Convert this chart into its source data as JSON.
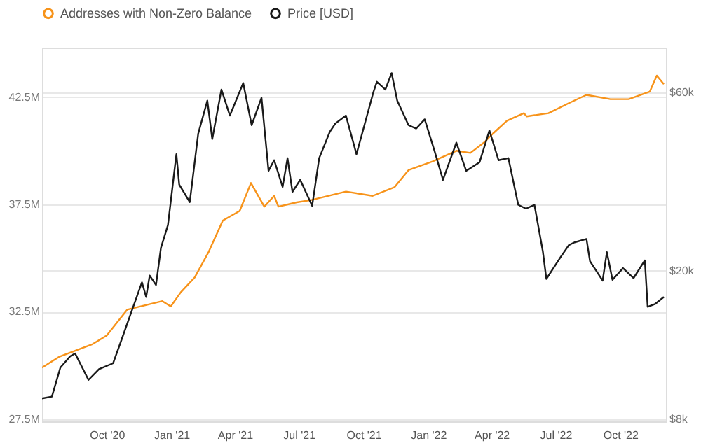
{
  "chart_data": {
    "type": "line",
    "legend": "top left",
    "grid": "y",
    "log": "y2",
    "line_style": "solid",
    "xlim": [
      "2020-07-01",
      "2022-12-05"
    ],
    "xticks": [
      {
        "value": "2020-10-01",
        "label": "Oct '20"
      },
      {
        "value": "2021-01-01",
        "label": "Jan '21"
      },
      {
        "value": "2021-04-01",
        "label": "Apr '21"
      },
      {
        "value": "2021-07-01",
        "label": "Jul '21"
      },
      {
        "value": "2021-10-01",
        "label": "Oct '21"
      },
      {
        "value": "2022-01-01",
        "label": "Jan '22"
      },
      {
        "value": "2022-04-01",
        "label": "Apr '22"
      },
      {
        "value": "2022-07-01",
        "label": "Jul '22"
      },
      {
        "value": "2022-10-01",
        "label": "Oct '22"
      }
    ],
    "ylim": [
      27.4,
      44.8
    ],
    "yticks": [
      {
        "value": 27.5,
        "label": "27.5M"
      },
      {
        "value": 32.5,
        "label": "32.5M"
      },
      {
        "value": 37.5,
        "label": "37.5M"
      },
      {
        "value": 42.5,
        "label": "42.5M"
      }
    ],
    "y2lim": [
      7900,
      79000
    ],
    "y2ticks": [
      {
        "value": 8000,
        "label": "$8k"
      },
      {
        "value": 20000,
        "label": "$20k"
      },
      {
        "value": 60000,
        "label": "$60k"
      }
    ],
    "series": [
      {
        "name": "Addresses with Non-Zero Balance",
        "color": "#f7931a",
        "x": [
          "2020-07-01",
          "2020-07-25",
          "2020-09-11",
          "2020-10-01",
          "2020-10-30",
          "2020-12-19",
          "2020-12-31",
          "2021-01-14",
          "2021-02-03",
          "2021-02-23",
          "2021-03-15",
          "2021-04-08",
          "2021-04-24",
          "2021-05-13",
          "2021-05-27",
          "2021-06-02",
          "2021-06-28",
          "2021-07-18",
          "2021-09-06",
          "2021-10-14",
          "2021-11-14",
          "2021-12-04",
          "2022-01-07",
          "2022-02-10",
          "2022-03-02",
          "2022-03-22",
          "2022-04-03",
          "2022-04-23",
          "2022-05-17",
          "2022-05-21",
          "2022-06-21",
          "2022-07-19",
          "2022-08-14",
          "2022-09-17",
          "2022-10-13",
          "2022-11-12",
          "2022-11-22",
          "2022-12-02"
        ],
        "values": [
          29.9,
          30.4,
          31.0,
          31.4,
          32.6,
          33.0,
          32.75,
          33.4,
          34.1,
          35.3,
          36.75,
          37.2,
          38.5,
          37.4,
          37.9,
          37.4,
          37.6,
          37.7,
          38.1,
          37.9,
          38.3,
          39.1,
          39.5,
          40.0,
          39.9,
          40.4,
          40.8,
          41.4,
          41.75,
          41.6,
          41.75,
          42.2,
          42.6,
          42.4,
          42.4,
          42.75,
          43.5,
          43.1
        ]
      },
      {
        "name": "Price [USD]",
        "color": "#1a1a1a",
        "axis": "y2",
        "x": [
          "2020-07-01",
          "2020-07-15",
          "2020-07-27",
          "2020-08-10",
          "2020-08-17",
          "2020-09-05",
          "2020-09-20",
          "2020-10-10",
          "2020-10-21",
          "2020-11-05",
          "2020-11-20",
          "2020-11-26",
          "2020-12-01",
          "2020-12-10",
          "2020-12-17",
          "2020-12-27",
          "2021-01-08",
          "2021-01-12",
          "2021-01-27",
          "2021-02-08",
          "2021-02-21",
          "2021-02-28",
          "2021-03-13",
          "2021-03-25",
          "2021-04-13",
          "2021-04-25",
          "2021-05-09",
          "2021-05-19",
          "2021-05-27",
          "2021-06-08",
          "2021-06-15",
          "2021-06-22",
          "2021-07-03",
          "2021-07-20",
          "2021-07-30",
          "2021-08-14",
          "2021-08-22",
          "2021-09-06",
          "2021-09-21",
          "2021-10-01",
          "2021-10-15",
          "2021-10-20",
          "2021-11-01",
          "2021-11-10",
          "2021-11-18",
          "2021-12-04",
          "2021-12-15",
          "2021-12-27",
          "2022-01-10",
          "2022-01-22",
          "2022-02-10",
          "2022-02-24",
          "2022-03-15",
          "2022-03-29",
          "2022-04-11",
          "2022-04-25",
          "2022-05-09",
          "2022-05-20",
          "2022-06-01",
          "2022-06-13",
          "2022-06-18",
          "2022-07-08",
          "2022-07-20",
          "2022-07-28",
          "2022-08-14",
          "2022-08-19",
          "2022-09-06",
          "2022-09-12",
          "2022-09-20",
          "2022-10-05",
          "2022-10-20",
          "2022-11-05",
          "2022-11-09",
          "2022-11-20",
          "2022-12-02"
        ],
        "values": [
          9100,
          9200,
          11000,
          11800,
          12000,
          10200,
          10900,
          11300,
          12900,
          15500,
          18600,
          17000,
          19400,
          18300,
          23000,
          26500,
          41000,
          34000,
          30500,
          46500,
          57000,
          45000,
          61000,
          52000,
          63500,
          49000,
          58000,
          37000,
          39500,
          33500,
          40000,
          32500,
          35000,
          29800,
          40000,
          47000,
          49500,
          52000,
          41000,
          48000,
          60000,
          64000,
          61000,
          67500,
          57000,
          49000,
          48000,
          50800,
          41800,
          35000,
          44000,
          37000,
          39000,
          47400,
          39500,
          40000,
          30000,
          29300,
          30000,
          22500,
          19000,
          21700,
          23400,
          23800,
          24300,
          21200,
          18800,
          22400,
          18900,
          20300,
          19100,
          21300,
          16000,
          16300,
          17000
        ]
      }
    ]
  }
}
